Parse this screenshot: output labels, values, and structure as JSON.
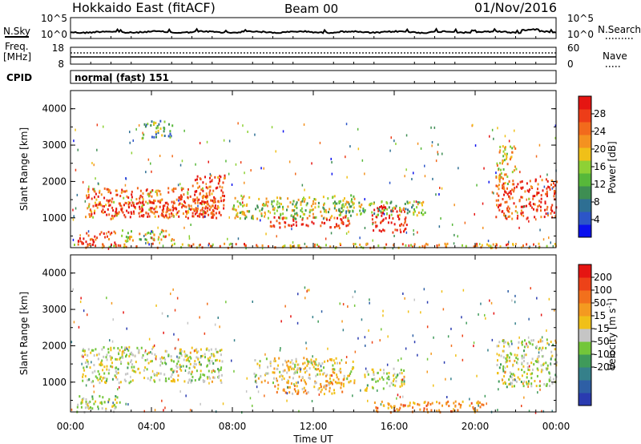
{
  "header": {
    "station": "Hokkaido East (fitACF)",
    "beam": "Beam 00",
    "date": "01/Nov/2016"
  },
  "noise_panel": {
    "left_label": "N.Sky",
    "right_label": "N.Search",
    "ticks_left": [
      "10^5",
      "10^0"
    ],
    "ticks_right": [
      "10^5",
      "10^0"
    ]
  },
  "freq_panel": {
    "left_label_1": "Freq.",
    "left_label_2": "[MHz]",
    "right_label": "Nave",
    "ticks_left": [
      "18",
      "8"
    ],
    "ticks_right": [
      "60",
      "0"
    ]
  },
  "cpid": {
    "label": "CPID",
    "value": "normal (fast) 151"
  },
  "chart_data": [
    {
      "type": "heatmap",
      "title": "",
      "quantity": "Power",
      "ylabel": "Slant Range [km]",
      "xlabel": "",
      "ylim": [
        180,
        4500
      ],
      "yticks": [
        "1000",
        "2000",
        "3000",
        "4000"
      ],
      "colorbar": {
        "label": "Power [dB]",
        "ticks": [
          "4",
          "8",
          "12",
          "16",
          "20",
          "24",
          "28"
        ],
        "colors": [
          "#0a10ee",
          "#2c55c8",
          "#2e6f93",
          "#3e8e53",
          "#57b83a",
          "#8ed135",
          "#f0c018",
          "#f49220",
          "#f26a1c",
          "#ed3d18",
          "#e51512"
        ]
      },
      "scatter_regions": [
        {
          "t0": 0.7,
          "t1": 7.2,
          "r0": 1000,
          "r1": 1850,
          "level": 0.75
        },
        {
          "t0": 2.0,
          "t1": 7.5,
          "r0": 1050,
          "r1": 1500,
          "level": 0.95
        },
        {
          "t0": 0.3,
          "t1": 2.2,
          "r0": 250,
          "r1": 650,
          "level": 0.9
        },
        {
          "t0": 2.5,
          "t1": 5.0,
          "r0": 350,
          "r1": 700,
          "level": 0.55
        },
        {
          "t0": 6.0,
          "t1": 7.6,
          "r0": 1250,
          "r1": 2200,
          "level": 0.85
        },
        {
          "t0": 8.0,
          "t1": 14.0,
          "r0": 1000,
          "r1": 1650,
          "level": 0.5
        },
        {
          "t0": 9.8,
          "t1": 13.8,
          "r0": 750,
          "r1": 1050,
          "level": 0.95
        },
        {
          "t0": 14.8,
          "t1": 16.6,
          "r0": 600,
          "r1": 1350,
          "level": 0.98
        },
        {
          "t0": 13.0,
          "t1": 17.5,
          "r0": 1100,
          "r1": 1500,
          "level": 0.45
        },
        {
          "t0": 21.0,
          "t1": 24.0,
          "r0": 1000,
          "r1": 2100,
          "level": 0.9
        },
        {
          "t0": 21.0,
          "t1": 22.0,
          "r0": 1800,
          "r1": 3000,
          "level": 0.6
        },
        {
          "t0": 0.0,
          "t1": 24.0,
          "r0": 200,
          "r1": 320,
          "level": 0.7
        },
        {
          "t0": 3.5,
          "t1": 5.0,
          "r0": 3200,
          "r1": 3700,
          "level": 0.35
        }
      ]
    },
    {
      "type": "heatmap",
      "title": "",
      "quantity": "Velocity",
      "ylabel": "Slant Range [km]",
      "xlabel": "Time UT",
      "ylim": [
        180,
        4500
      ],
      "yticks": [
        "1000",
        "2000",
        "3000",
        "4000"
      ],
      "xticks": [
        "00:00",
        "04:00",
        "08:00",
        "12:00",
        "16:00",
        "20:00",
        "00:00"
      ],
      "x_hours": [
        0,
        4,
        8,
        12,
        16,
        20,
        24
      ],
      "colorbar": {
        "label": "Velocity [m s^-1]",
        "ticks": [
          "200",
          "100",
          "50",
          "15",
          "-15",
          "-50",
          "-100",
          "-200"
        ],
        "colors": [
          "#2a3bb0",
          "#2e5fa5",
          "#35808a",
          "#3f9a5a",
          "#73c63a",
          "#c5c5c5",
          "#f0c018",
          "#f49a20",
          "#f2701c",
          "#ed4218",
          "#e51512"
        ]
      },
      "scatter_regions": [
        {
          "t0": 0.5,
          "t1": 7.5,
          "r0": 1000,
          "r1": 2000,
          "level": 0.5
        },
        {
          "t0": 0.2,
          "t1": 2.5,
          "r0": 200,
          "r1": 650,
          "level": 0.5
        },
        {
          "t0": 9.0,
          "t1": 14.0,
          "r0": 1000,
          "r1": 1700,
          "level": 0.55
        },
        {
          "t0": 10.0,
          "t1": 13.5,
          "r0": 700,
          "r1": 1100,
          "level": 0.65
        },
        {
          "t0": 14.5,
          "t1": 16.5,
          "r0": 800,
          "r1": 1400,
          "level": 0.5
        },
        {
          "t0": 21.0,
          "t1": 24.0,
          "r0": 900,
          "r1": 2200,
          "level": 0.5
        },
        {
          "t0": 15.0,
          "t1": 20.5,
          "r0": 200,
          "r1": 500,
          "level": 0.7
        }
      ]
    }
  ]
}
